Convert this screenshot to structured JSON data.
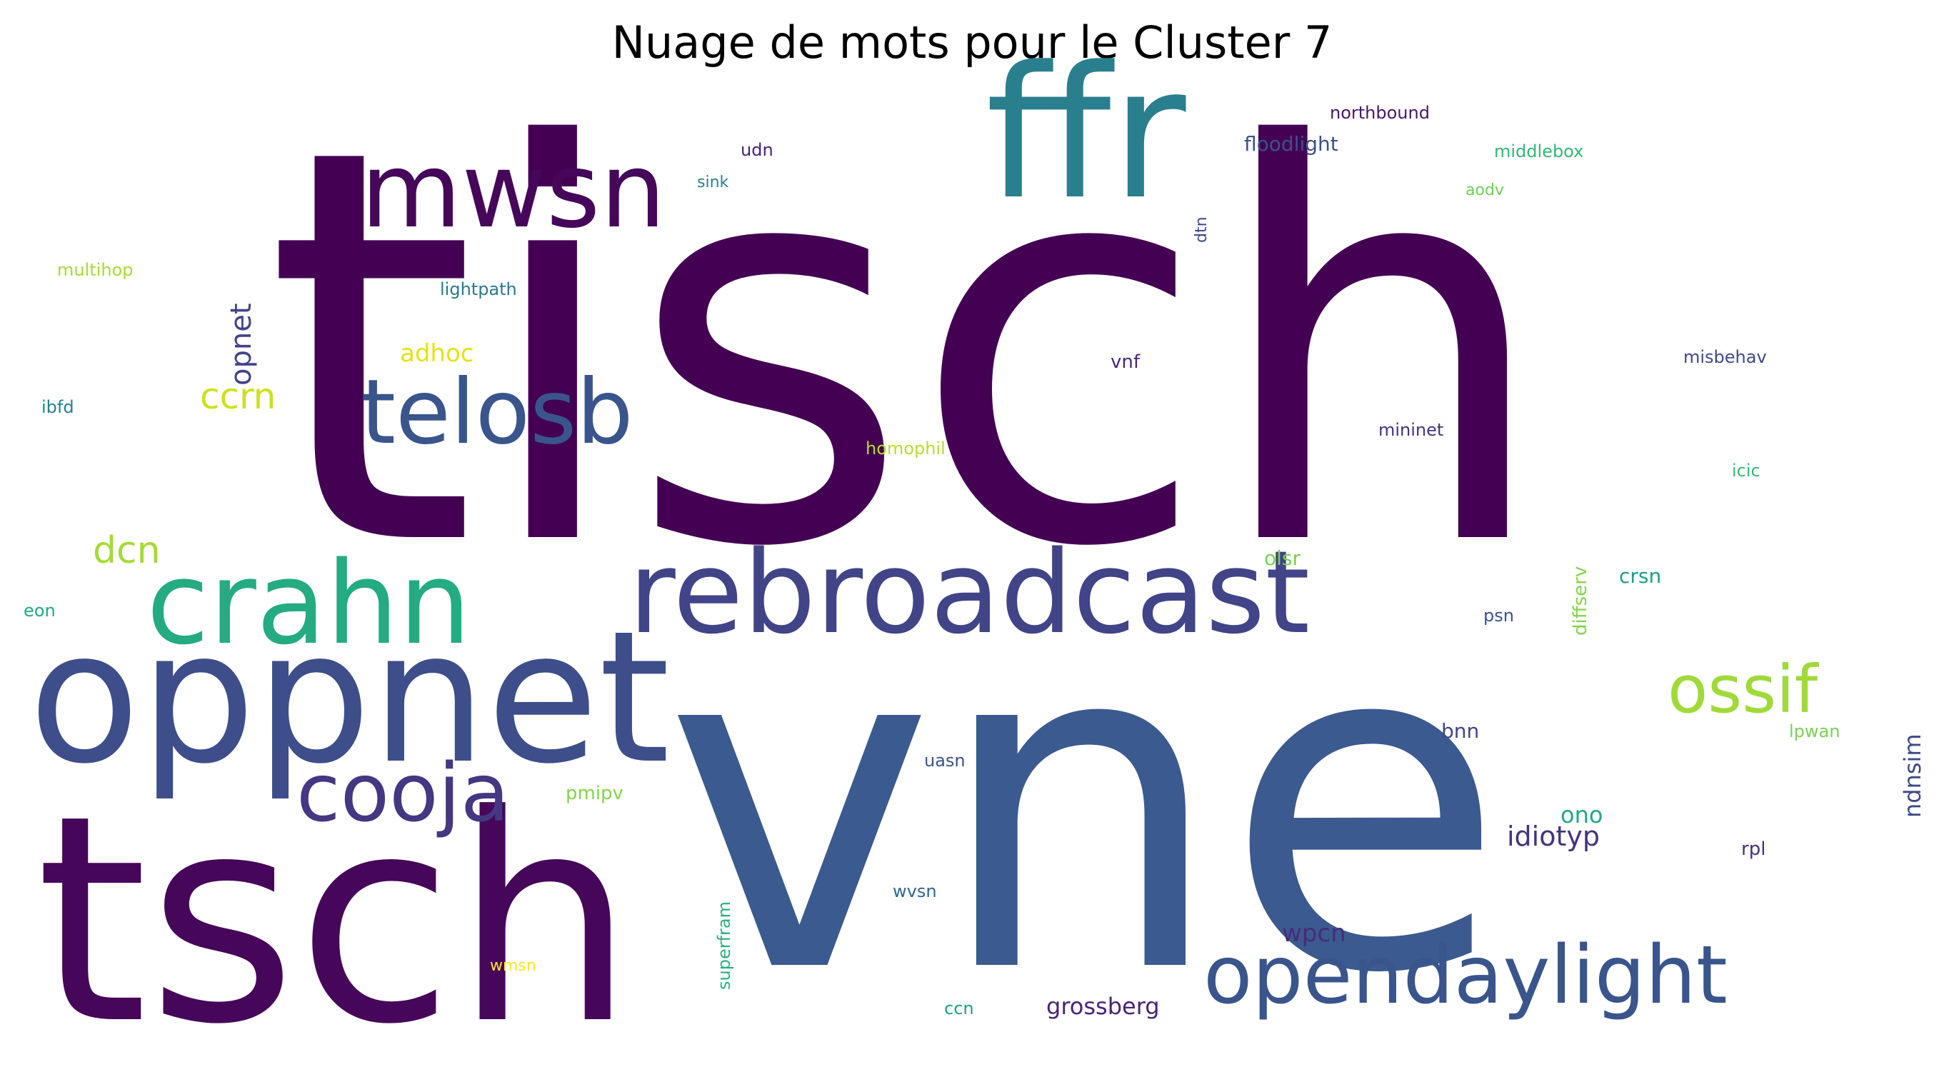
{
  "title": "Nuage de mots pour le Cluster 7",
  "words": [
    {
      "text": "tisch",
      "color": "#440154"
    },
    {
      "text": "vne",
      "color": "#3b5a8f"
    },
    {
      "text": "tsch",
      "color": "#46075a"
    },
    {
      "text": "oppnet",
      "color": "#3e4e8a"
    },
    {
      "text": "ffr",
      "color": "#2a7f8e"
    },
    {
      "text": "rebroadcast",
      "color": "#414487"
    },
    {
      "text": "crahn",
      "color": "#25ab82"
    },
    {
      "text": "mwsn",
      "color": "#46075a"
    },
    {
      "text": "telosb",
      "color": "#39558c"
    },
    {
      "text": "opendaylight",
      "color": "#39558c"
    },
    {
      "text": "cooja",
      "color": "#453781"
    },
    {
      "text": "ossif",
      "color": "#a0da39"
    },
    {
      "text": "dcn",
      "color": "#a5db36"
    },
    {
      "text": "ccrn",
      "color": "#cde11d"
    },
    {
      "text": "opnet",
      "color": "#414487"
    },
    {
      "text": "idiotyp",
      "color": "#46337e"
    },
    {
      "text": "wpcn",
      "color": "#472d7b"
    },
    {
      "text": "adhoc",
      "color": "#e2e418"
    },
    {
      "text": "ono",
      "color": "#22a884"
    },
    {
      "text": "grossberg",
      "color": "#482576"
    },
    {
      "text": "ndnsim",
      "color": "#3e4a89"
    },
    {
      "text": "northbound",
      "color": "#48186a"
    },
    {
      "text": "floodlight",
      "color": "#3b528b"
    },
    {
      "text": "middlebox",
      "color": "#35b779"
    },
    {
      "text": "udn",
      "color": "#482173"
    },
    {
      "text": "sink",
      "color": "#26828e"
    },
    {
      "text": "aodv",
      "color": "#6ece58"
    },
    {
      "text": "dtn",
      "color": "#3e4989"
    },
    {
      "text": "multihop",
      "color": "#a5db36"
    },
    {
      "text": "lightpath",
      "color": "#2a788e"
    },
    {
      "text": "vnf",
      "color": "#482878"
    },
    {
      "text": "misbehav",
      "color": "#3e4a89"
    },
    {
      "text": "ibfd",
      "color": "#26828e"
    },
    {
      "text": "mininet",
      "color": "#46337e"
    },
    {
      "text": "homophil",
      "color": "#b5de2b"
    },
    {
      "text": "icic",
      "color": "#35b779"
    },
    {
      "text": "olsr",
      "color": "#7ad151"
    },
    {
      "text": "diffserv",
      "color": "#84d44b"
    },
    {
      "text": "crsn",
      "color": "#1f9e89"
    },
    {
      "text": "eon",
      "color": "#22a884"
    },
    {
      "text": "psn",
      "color": "#3b528b"
    },
    {
      "text": "bnn",
      "color": "#404688"
    },
    {
      "text": "lpwan",
      "color": "#7ad151"
    },
    {
      "text": "uasn",
      "color": "#3b528b"
    },
    {
      "text": "pmipv",
      "color": "#86d549"
    },
    {
      "text": "rpl",
      "color": "#46337e"
    },
    {
      "text": "wvsn",
      "color": "#31688e"
    },
    {
      "text": "superfram",
      "color": "#2ab07f"
    },
    {
      "text": "wmsn",
      "color": "#fde725"
    },
    {
      "text": "ccn",
      "color": "#1f9e89"
    }
  ]
}
